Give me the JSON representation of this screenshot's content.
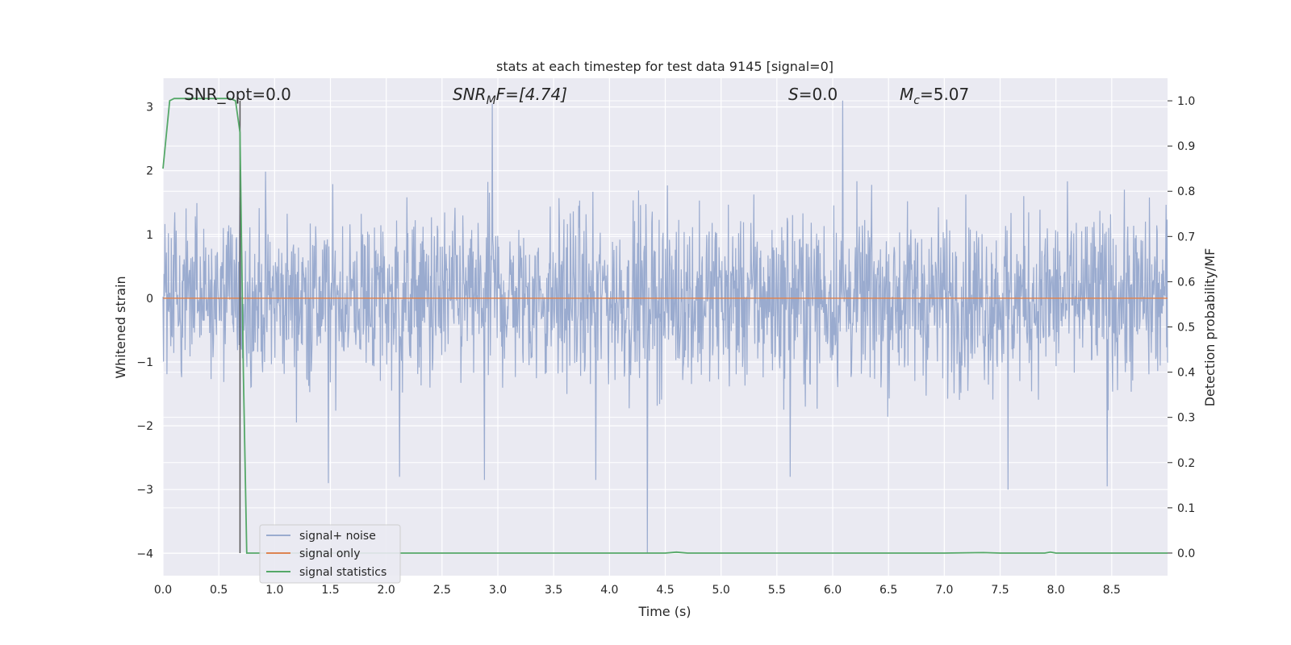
{
  "chart_data": {
    "type": "line",
    "title": "stats at each timestep for test data 9145 [signal=0]",
    "xlabel": "Time (s)",
    "ylabel": "Whitened strain",
    "ylabel_right": "Detection probability/MF",
    "xlim": [
      0.0,
      9.0
    ],
    "ylim": [
      -4.35,
      3.45
    ],
    "ylim_right": [
      -0.05,
      1.05
    ],
    "x_ticks": [
      0.0,
      0.5,
      1.0,
      1.5,
      2.0,
      2.5,
      3.0,
      3.5,
      4.0,
      4.5,
      5.0,
      5.5,
      6.0,
      6.5,
      7.0,
      7.5,
      8.0,
      8.5
    ],
    "x_tick_labels": [
      "0.0",
      "0.5",
      "1.0",
      "1.5",
      "2.0",
      "2.5",
      "3.0",
      "3.5",
      "4.0",
      "4.5",
      "5.0",
      "5.5",
      "6.0",
      "6.5",
      "7.0",
      "7.5",
      "8.0",
      "8.5"
    ],
    "y_ticks": [
      -4,
      -3,
      -2,
      -1,
      0,
      1,
      2,
      3
    ],
    "y_tick_labels": [
      "−4",
      "−3",
      "−2",
      "−1",
      "0",
      "1",
      "2",
      "3"
    ],
    "y_right_ticks": [
      0.0,
      0.1,
      0.2,
      0.3,
      0.4,
      0.5,
      0.6,
      0.7,
      0.8,
      0.9,
      1.0
    ],
    "y_right_tick_labels": [
      "0.0",
      "0.1",
      "0.2",
      "0.3",
      "0.4",
      "0.5",
      "0.6",
      "0.7",
      "0.8",
      "0.9",
      "1.0"
    ],
    "grid": true,
    "legend_position": "lower-left",
    "annotations": {
      "snr_opt": "SNR_opt=0.0",
      "snr_mf_base": "SNR",
      "snr_mf_sub": "M",
      "snr_mf_rest": "F=[4.74]",
      "s_base": "S",
      "s_rest": "=0.0",
      "mc_base": "M",
      "mc_sub": "c",
      "mc_rest": "=5.07"
    },
    "vertical_line_x": 0.69,
    "series": [
      {
        "name": "signal+ noise",
        "color": "#9aabcf",
        "axis": "left",
        "kind": "noise",
        "x_range": [
          0.0,
          9.0
        ],
        "samples": 2048,
        "typical_range": [
          -1.9,
          2.0
        ],
        "max": 3.1,
        "min": -4.0,
        "spikes": [
          {
            "x": 2.95,
            "y": 3.05
          },
          {
            "x": 6.09,
            "y": 3.1
          },
          {
            "x": 4.34,
            "y": -4.0
          },
          {
            "x": 2.88,
            "y": -2.85
          },
          {
            "x": 3.88,
            "y": -2.85
          },
          {
            "x": 7.57,
            "y": -3.0
          },
          {
            "x": 8.46,
            "y": -2.95
          },
          {
            "x": 5.62,
            "y": -2.8
          },
          {
            "x": 1.48,
            "y": -2.9
          },
          {
            "x": 2.12,
            "y": -2.8
          }
        ]
      },
      {
        "name": "signal only",
        "color": "#dd8452",
        "axis": "left",
        "x": [
          0.0,
          9.0
        ],
        "y": [
          0.0,
          0.0
        ]
      },
      {
        "name": "signal statistics",
        "color": "#55a868",
        "axis": "right",
        "x": [
          0.0,
          0.06,
          0.1,
          0.2,
          0.3,
          0.4,
          0.5,
          0.6,
          0.65,
          0.69,
          0.72,
          0.75,
          1.0,
          2.0,
          3.0,
          4.0,
          4.5,
          4.6,
          4.7,
          5.0,
          6.0,
          7.0,
          7.35,
          7.5,
          7.9,
          7.95,
          8.0,
          8.5,
          9.0
        ],
        "y": [
          0.85,
          1.0,
          1.005,
          1.005,
          1.005,
          1.005,
          1.005,
          1.005,
          1.0,
          0.93,
          0.4,
          0.0,
          0.0,
          0.0,
          0.0,
          0.0,
          0.0,
          0.002,
          0.0,
          0.0,
          0.0,
          0.0,
          0.001,
          0.0,
          0.0,
          0.002,
          0.0,
          0.0,
          0.0
        ]
      }
    ]
  }
}
